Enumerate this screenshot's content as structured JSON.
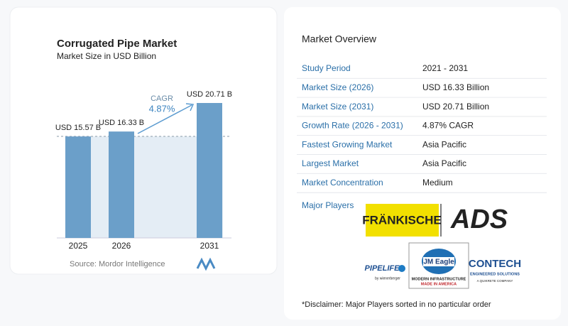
{
  "chart_data": {
    "type": "bar",
    "title": "Corrugated Pipe Market",
    "subtitle": "Market Size in USD Billion",
    "categories": [
      "2025",
      "2026",
      "2031"
    ],
    "values": [
      15.57,
      16.33,
      20.71
    ],
    "value_labels": [
      "USD 15.57 B",
      "USD 16.33 B",
      "USD 20.71 B"
    ],
    "color": "#6b9fc9",
    "annotation": {
      "label": "CAGR",
      "value": "4.87%"
    },
    "source": "Source: Mordor Intelligence"
  },
  "overview": {
    "title": "Market Overview",
    "rows": [
      [
        "Study Period",
        "2021 - 2031"
      ],
      [
        "Market Size (2026)",
        "USD 16.33 Billion"
      ],
      [
        "Market Size (2031)",
        "USD 20.71 Billion"
      ],
      [
        "Growth Rate (2026 - 2031)",
        "4.87% CAGR"
      ],
      [
        "Fastest Growing Market",
        "Asia Pacific"
      ],
      [
        "Largest Market",
        "Asia Pacific"
      ],
      [
        "Market Concentration",
        "Medium"
      ]
    ]
  },
  "major_players": {
    "title": "Major Players",
    "logos": [
      {
        "name": "FRÄNKISCHE"
      },
      {
        "name": "ADS"
      },
      {
        "name": "PIPELIFE",
        "tagline": "by wienerberger"
      },
      {
        "name": "JM Eagle",
        "tagline": "MODERN INFRASTRUCTURE",
        "tagline2": "MADE IN AMERICA"
      },
      {
        "name": "CONTECH",
        "tagline": "ENGINEERED SOLUTIONS",
        "tagline2": "A QUIKRETE COMPANY"
      }
    ]
  },
  "disclaimer": "*Disclaimer: Major Players sorted in no particular order"
}
